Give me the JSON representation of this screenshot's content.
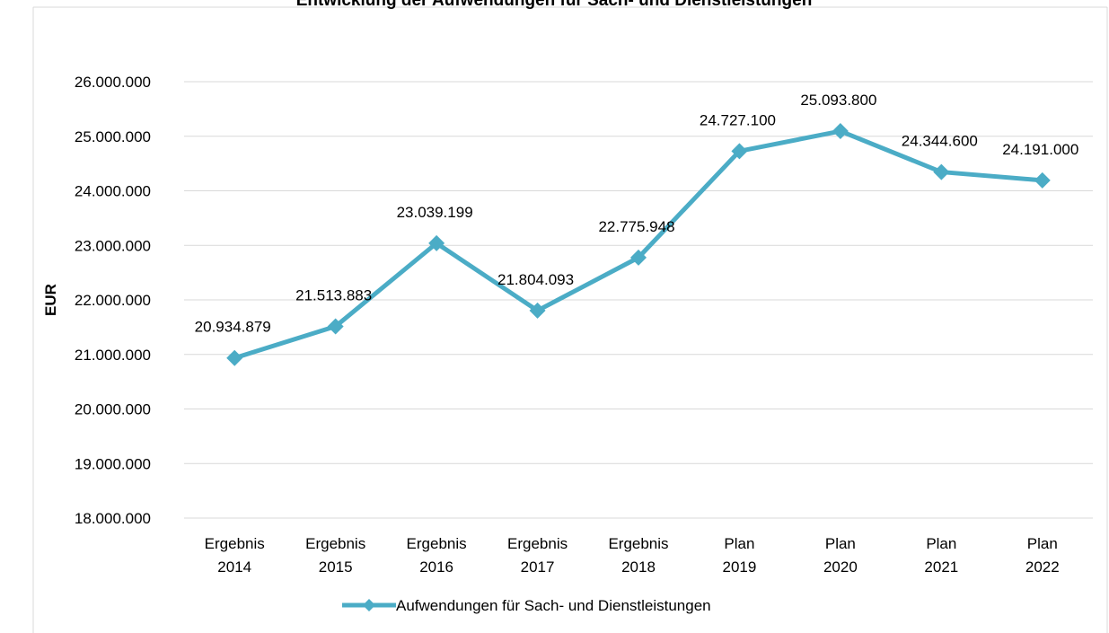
{
  "chart_data": {
    "type": "line",
    "title": "Entwicklung der Aufwendungen für Sach- und Dienstleistungen",
    "xlabel": "",
    "ylabel": "EUR",
    "categories": [
      [
        "Ergebnis",
        "2014"
      ],
      [
        "Ergebnis",
        "2015"
      ],
      [
        "Ergebnis",
        "2016"
      ],
      [
        "Ergebnis",
        "2017"
      ],
      [
        "Ergebnis",
        "2018"
      ],
      [
        "Plan",
        "2019"
      ],
      [
        "Plan",
        "2020"
      ],
      [
        "Plan",
        "2021"
      ],
      [
        "Plan",
        "2022"
      ]
    ],
    "series": [
      {
        "name": "Aufwendungen für Sach- und Dienstleistungen",
        "values": [
          20934879,
          21513883,
          23039199,
          21804093,
          22775948,
          24727100,
          25093800,
          24344600,
          24191000
        ],
        "labels": [
          "20.934.879",
          "21.513.883",
          "23.039.199",
          "21.804.093",
          "22.775.948",
          "24.727.100",
          "25.093.800",
          "24.344.600",
          "24.191.000"
        ],
        "color": "#4BACC6"
      }
    ],
    "ylim": [
      18000000,
      26000000
    ],
    "yticks": [
      18000000,
      19000000,
      20000000,
      21000000,
      22000000,
      23000000,
      24000000,
      25000000,
      26000000
    ],
    "ytick_labels": [
      "18.000.000",
      "19.000.000",
      "20.000.000",
      "21.000.000",
      "22.000.000",
      "23.000.000",
      "24.000.000",
      "25.000.000",
      "26.000.000"
    ],
    "grid": true,
    "legend_position": "bottom",
    "marker": "diamond"
  }
}
